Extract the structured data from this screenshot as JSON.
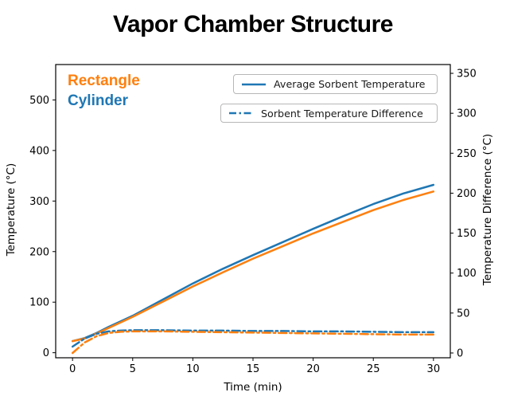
{
  "title": "Vapor Chamber Structure",
  "annotations": {
    "rectangle": {
      "label": "Rectangle",
      "color": "#ff7f0e"
    },
    "cylinder": {
      "label": "Cylinder",
      "color": "#1f77b4"
    }
  },
  "legend": [
    {
      "label": "Average Sorbent Temperature",
      "style": "solid",
      "color": "#1f77b4"
    },
    {
      "label": "Sorbent Temperature Difference",
      "style": "dashdot",
      "color": "#1f77b4"
    }
  ],
  "colors": {
    "cylinder": "#1f77b4",
    "rectangle": "#ff7f0e",
    "spine": "#000000"
  },
  "chart_data": {
    "type": "line",
    "title": "Vapor Chamber Structure",
    "xlabel": "Time (min)",
    "ylabel_left": "Temperature (°C)",
    "ylabel_right": "Temperature Difference (°C)",
    "xlim": [
      -1.4,
      31.4
    ],
    "ylim_left": [
      -10,
      570
    ],
    "ylim_right": [
      -6,
      361
    ],
    "xticks": [
      0,
      5,
      10,
      15,
      20,
      25,
      30
    ],
    "yticks_left": [
      0,
      100,
      200,
      300,
      400,
      500
    ],
    "yticks_right": [
      0,
      50,
      100,
      150,
      200,
      250,
      300,
      350
    ],
    "grid": false,
    "legend_position": "upper center, two separate boxes",
    "x": [
      0,
      1,
      2,
      3,
      4,
      5,
      7.5,
      10,
      12.5,
      15,
      17.5,
      20,
      22.5,
      25,
      27.5,
      30
    ],
    "series": [
      {
        "name": "Cylinder - Average Sorbent Temperature",
        "axis": "left",
        "style": "solid",
        "color": "#1f77b4",
        "values": [
          23,
          29,
          39,
          51,
          62,
          73,
          105,
          137,
          166,
          193,
          219,
          245,
          270,
          294,
          315,
          332
        ]
      },
      {
        "name": "Rectangle - Average Sorbent Temperature",
        "axis": "left",
        "style": "solid",
        "color": "#ff7f0e",
        "values": [
          23,
          28,
          38,
          49,
          60,
          71,
          101,
          131,
          159,
          186,
          211,
          236,
          259,
          282,
          302,
          319
        ]
      },
      {
        "name": "Cylinder - Sorbent Temperature Difference",
        "axis": "right",
        "style": "dashdot",
        "color": "#1f77b4",
        "values": [
          8,
          18,
          24,
          27,
          28,
          28.5,
          28.5,
          28,
          28,
          27.5,
          27.5,
          27,
          27,
          26.5,
          26,
          26
        ]
      },
      {
        "name": "Rectangle - Sorbent Temperature Difference",
        "axis": "right",
        "style": "dashdot",
        "color": "#ff7f0e",
        "values": [
          0,
          13,
          21,
          25,
          26.5,
          27,
          27,
          26.5,
          26,
          25.5,
          25,
          24.5,
          24,
          23.5,
          23,
          23
        ]
      }
    ]
  }
}
